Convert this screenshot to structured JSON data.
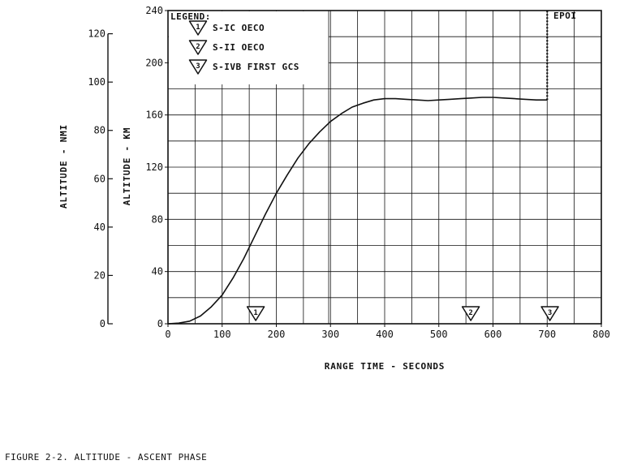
{
  "figure_caption": "FIGURE 2-2.  ALTITUDE - ASCENT PHASE",
  "chart_data": {
    "type": "line",
    "title": "",
    "xlabel": "RANGE TIME - SECONDS",
    "ylabel": "ALTITUDE - KM",
    "ylabel_secondary": "ALTITUDE - NMI",
    "xlim": [
      0,
      800
    ],
    "ylim": [
      0,
      240
    ],
    "ylim_secondary": [
      0,
      129.6
    ],
    "x_ticks": [
      "0",
      "100",
      "200",
      "300",
      "400",
      "500",
      "600",
      "700",
      "800"
    ],
    "y_ticks": [
      "0",
      "40",
      "80",
      "120",
      "160",
      "200",
      "240"
    ],
    "y_ticks_secondary": [
      "0",
      "20",
      "40",
      "60",
      "80",
      "100",
      "120"
    ],
    "grid": true,
    "line_color": "#111111",
    "series": [
      {
        "x": [
          0,
          20,
          40,
          60,
          80,
          100,
          120,
          140,
          160,
          180,
          200,
          220,
          240,
          260,
          280,
          300,
          320,
          340,
          360,
          380,
          400,
          420,
          440,
          460,
          480,
          500,
          520,
          540,
          560,
          580,
          600,
          620,
          640,
          660,
          680,
          700
        ],
        "y": [
          0,
          0.5,
          2,
          6,
          13,
          22,
          35,
          50,
          67,
          84,
          100,
          114,
          127,
          138,
          147,
          155,
          161,
          166,
          169,
          171.5,
          172.5,
          172.5,
          172,
          171.5,
          171,
          171.5,
          172,
          172.5,
          173,
          173.5,
          173.5,
          173,
          172.5,
          172,
          171.5,
          171.5
        ]
      },
      {
        "x": [
          700,
          700
        ],
        "y": [
          171.5,
          240
        ],
        "style": "dotted"
      }
    ],
    "legend": {
      "title": "LEGEND:",
      "position": "top-left",
      "items": [
        {
          "number": "1",
          "label": "S-IC OECO"
        },
        {
          "number": "2",
          "label": "S-II OECO"
        },
        {
          "number": "3",
          "label": "S-IVB FIRST GCS"
        }
      ]
    },
    "event_markers": [
      {
        "number": "1",
        "x": 162
      },
      {
        "number": "2",
        "x": 559
      },
      {
        "number": "3",
        "x": 705
      }
    ],
    "annotations": [
      {
        "text": "EPOI",
        "x": 700,
        "y": 240
      }
    ]
  }
}
